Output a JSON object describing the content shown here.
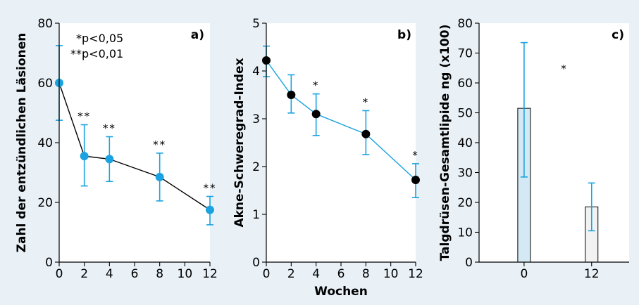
{
  "chart_data": [
    {
      "id": "a",
      "type": "line",
      "panel_label": "a)",
      "ylabel": "Zahl der entzündlichen Läsionen",
      "xlabel": "",
      "xlim": [
        0,
        12
      ],
      "ylim": [
        0,
        80
      ],
      "xticks": [
        0,
        2,
        4,
        6,
        8,
        10,
        12
      ],
      "yticks": [
        0,
        20,
        40,
        60,
        80
      ],
      "x": [
        0,
        2,
        4,
        8,
        12
      ],
      "values": [
        60,
        35.5,
        34.5,
        28.5,
        17.5
      ],
      "err_low": [
        47.5,
        25.5,
        27,
        20.5,
        12.5
      ],
      "err_high": [
        72.5,
        46,
        42,
        36.5,
        22
      ],
      "significance": [
        "",
        "**",
        "**",
        "**",
        "**"
      ],
      "legend": [
        "*p<0,05",
        "**p<0,01"
      ],
      "marker_color": "#1aa3e0",
      "line_color": "#000000"
    },
    {
      "id": "b",
      "type": "line",
      "panel_label": "b)",
      "ylabel": "Akne-Schweregrad-Index",
      "xlabel": "Wochen",
      "xlim": [
        0,
        12
      ],
      "ylim": [
        0,
        5
      ],
      "xticks": [
        0,
        2,
        4,
        6,
        8,
        10,
        12
      ],
      "yticks": [
        0,
        1,
        2,
        3,
        4,
        5
      ],
      "x": [
        0,
        2,
        4,
        8,
        12
      ],
      "values": [
        4.22,
        3.5,
        3.1,
        2.68,
        1.72
      ],
      "err_low": [
        3.88,
        3.12,
        2.65,
        2.25,
        1.35
      ],
      "err_high": [
        4.52,
        3.92,
        3.52,
        3.17,
        2.06
      ],
      "significance": [
        "",
        "",
        "*",
        "*",
        "*"
      ],
      "marker_color": "#000000",
      "line_color": "#1aa3e0"
    },
    {
      "id": "c",
      "type": "bar",
      "panel_label": "c)",
      "ylabel": "Talgdrüsen-Gesamtlipide ng (x100)",
      "xlabel": "",
      "ylim": [
        0,
        80
      ],
      "yticks": [
        0,
        10,
        20,
        30,
        40,
        50,
        60,
        70,
        80
      ],
      "categories": [
        "0",
        "12"
      ],
      "values": [
        51.5,
        18.5
      ],
      "err_low": [
        28.5,
        10.5
      ],
      "err_high": [
        73.5,
        26.5
      ],
      "significance_label": "*",
      "colors": [
        "#d4e9f4",
        "#f2f2f2"
      ]
    }
  ]
}
